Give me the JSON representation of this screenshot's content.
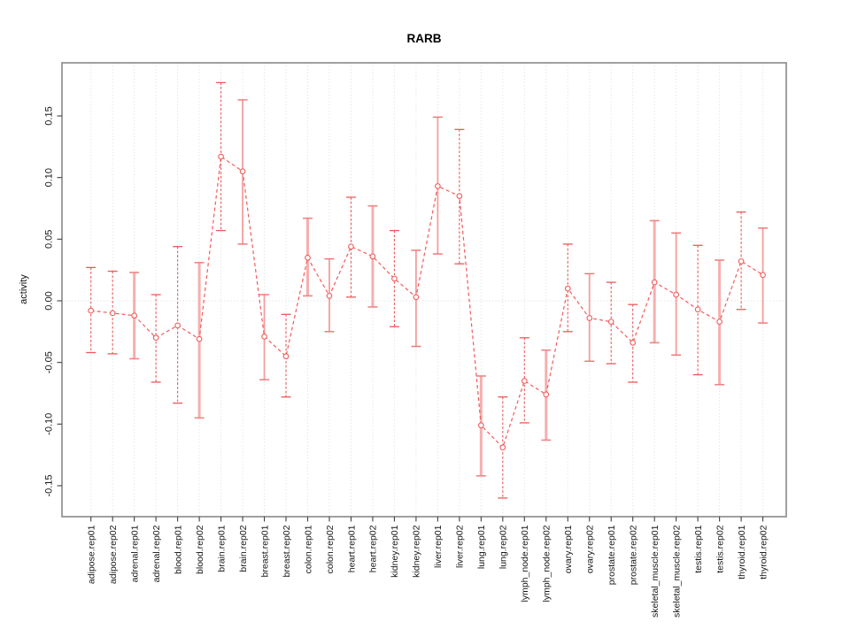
{
  "chart_data": {
    "type": "line",
    "title": "RARB",
    "xlabel": "",
    "ylabel": "activity",
    "legend": "none",
    "grid": "dotted vertical gridline at each category; dotted horizontal line at y=0",
    "marker": "open-circle",
    "line_style": "dashed",
    "ylim": [
      -0.175,
      0.193
    ],
    "yticks": [
      -0.15,
      -0.1,
      -0.05,
      0.0,
      0.05,
      0.1,
      0.15
    ],
    "ytick_labels": [
      "-0.15",
      "-0.10",
      "-0.05",
      "0.00",
      "0.05",
      "0.10",
      "0.15"
    ],
    "categories": [
      "adipose.rep01",
      "adipose.rep02",
      "adrenal.rep01",
      "adrenal.rep02",
      "blood.rep01",
      "blood.rep02",
      "brain.rep01",
      "brain.rep02",
      "breast.rep01",
      "breast.rep02",
      "colon.rep01",
      "colon.rep02",
      "heart.rep01",
      "heart.rep02",
      "kidney.rep01",
      "kidney.rep02",
      "liver.rep01",
      "liver.rep02",
      "lung.rep01",
      "lung.rep02",
      "lymph_node.rep01",
      "lymph_node.rep02",
      "ovary.rep01",
      "ovary.rep02",
      "prostate.rep01",
      "prostate.rep02",
      "skeletal_muscle.rep01",
      "skeletal_muscle.rep02",
      "testis.rep01",
      "testis.rep02",
      "thyroid.rep01",
      "thyroid.rep02"
    ],
    "series": [
      {
        "name": "activity",
        "values": [
          -0.008,
          -0.01,
          -0.012,
          -0.03,
          -0.02,
          -0.031,
          0.117,
          0.105,
          -0.029,
          -0.045,
          0.035,
          0.004,
          0.044,
          0.036,
          0.018,
          0.003,
          0.093,
          0.085,
          -0.101,
          -0.119,
          -0.065,
          -0.076,
          0.01,
          -0.014,
          -0.017,
          -0.034,
          0.015,
          0.005,
          -0.007,
          -0.017,
          0.032,
          0.021
        ],
        "error_low": [
          -0.042,
          -0.043,
          -0.047,
          -0.066,
          -0.083,
          -0.095,
          0.057,
          0.046,
          -0.064,
          -0.078,
          0.004,
          -0.025,
          0.003,
          -0.005,
          -0.021,
          -0.037,
          0.038,
          0.03,
          -0.142,
          -0.16,
          -0.099,
          -0.113,
          -0.025,
          -0.049,
          -0.051,
          -0.066,
          -0.034,
          -0.044,
          -0.06,
          -0.068,
          -0.007,
          -0.018
        ],
        "error_high": [
          0.027,
          0.024,
          0.023,
          0.005,
          0.044,
          0.031,
          0.177,
          0.163,
          0.005,
          -0.011,
          0.067,
          0.034,
          0.084,
          0.077,
          0.057,
          0.041,
          0.149,
          0.139,
          -0.061,
          -0.078,
          -0.03,
          -0.04,
          0.046,
          0.022,
          0.015,
          -0.003,
          0.065,
          0.055,
          0.045,
          0.033,
          0.072,
          0.059
        ],
        "bar_styles": [
          "dashed",
          "dashed",
          "thick",
          "dashed",
          "dashed",
          "thick",
          "dashed",
          "solid",
          "solid",
          "dashed",
          "thick",
          "solid",
          "dashed",
          "thick",
          "dashed",
          "solid",
          "solid",
          "dashed",
          "thick",
          "dashed",
          "dashed",
          "thick",
          "dashed",
          "solid",
          "dashed",
          "dashed",
          "thick",
          "solid",
          "dashed",
          "thick",
          "dashed",
          "solid"
        ]
      }
    ],
    "colors": {
      "series": "#F15C5C",
      "errorbar_dashed": "#EC5A5A",
      "errorbar_solid": "#F49E9E",
      "errorbar_thick": "#F6AFAF",
      "cap_dashed": "#EC5A5A",
      "cap_solid": "#EF7272",
      "cap_thick": "#EF8585",
      "grid": "#DBDBDB",
      "box": "#8F8F8F",
      "tick": "#404040",
      "text": "#161616"
    }
  }
}
